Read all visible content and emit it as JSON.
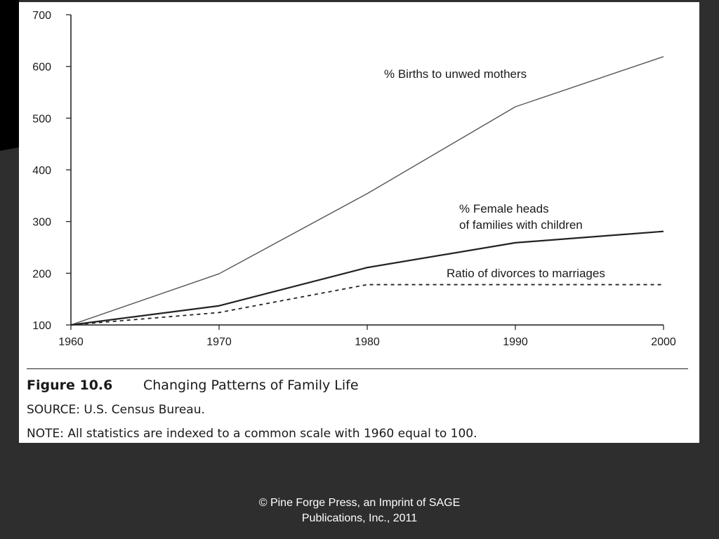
{
  "chart_data": {
    "type": "line",
    "x": [
      1960,
      1970,
      1980,
      1990,
      2000
    ],
    "xlim": [
      1960,
      2000
    ],
    "ylim": [
      100,
      700
    ],
    "xticks": [
      "1960",
      "1970",
      "1980",
      "1990",
      "2000"
    ],
    "yticks": [
      "100",
      "200",
      "300",
      "400",
      "500",
      "600",
      "700"
    ],
    "grid": false,
    "legend": "none",
    "series": [
      {
        "name": "% Births to unwed mothers",
        "values": [
          100,
          199,
          354,
          522,
          619
        ],
        "style": "solid-thin",
        "color": "#555555"
      },
      {
        "name": "% Female heads of families with children",
        "label_lines": [
          "% Female heads",
          "of families with children"
        ],
        "values": [
          100,
          137,
          211,
          259,
          281
        ],
        "style": "solid-thick",
        "color": "#222222"
      },
      {
        "name": "Ratio of divorces to marriages",
        "values": [
          100,
          124,
          178,
          178,
          178
        ],
        "style": "dashed",
        "color": "#222222"
      }
    ]
  },
  "caption": {
    "figure_number": "Figure 10.6",
    "title": "Changing Patterns of Family Life",
    "source": "SOURCE: U.S. Census Bureau.",
    "note": "NOTE: All statistics are indexed to a common scale with 1960 equal to 100."
  },
  "credit": {
    "line1": "© Pine Forge Press, an Imprint of SAGE",
    "line2": "Publications, Inc., 2011"
  },
  "colors": {
    "slide_background": "#2e2e2e",
    "panel_background": "#ffffff",
    "text": "#1a1a1a"
  }
}
